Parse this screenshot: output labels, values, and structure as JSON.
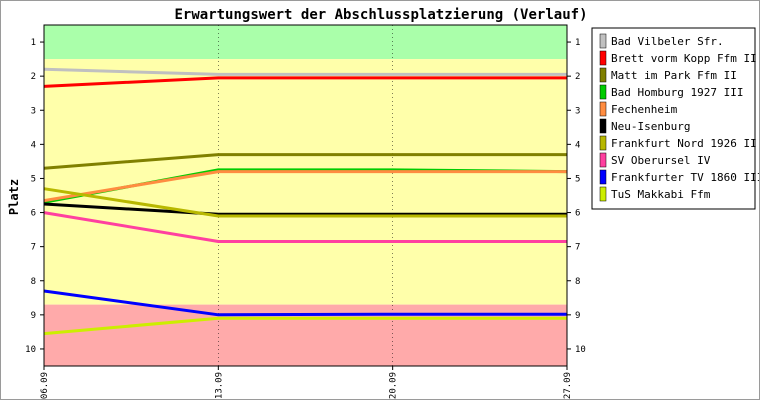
{
  "chart_data": {
    "type": "line",
    "title": "Erwartungswert der Abschlussplatzierung (Verlauf)",
    "ylabel": "Platz",
    "xlabel": "",
    "x": [
      "06.09",
      "13.09",
      "20.09",
      "27.09"
    ],
    "ylim": [
      10.5,
      0.5
    ],
    "y_ticks": [
      1,
      2,
      3,
      4,
      5,
      6,
      7,
      8,
      9,
      10
    ],
    "y_inverted": true,
    "legend_position": "right",
    "bands": [
      {
        "from": 0.5,
        "to": 1.5,
        "color": "#aaffaa"
      },
      {
        "from": 1.5,
        "to": 8.7,
        "color": "#ffffaa"
      },
      {
        "from": 8.7,
        "to": 10.5,
        "color": "#ffaaaa"
      }
    ],
    "series": [
      {
        "name": "Bad Vilbeler Sfr.",
        "color": "#c0c0c0",
        "values": [
          1.8,
          1.95,
          1.95,
          1.95
        ]
      },
      {
        "name": "Brett vorm Kopp Ffm II",
        "color": "#ff0000",
        "values": [
          2.3,
          2.05,
          2.05,
          2.05
        ]
      },
      {
        "name": "Matt im Park Ffm II",
        "color": "#808000",
        "values": [
          4.7,
          4.3,
          4.3,
          4.3
        ]
      },
      {
        "name": "Bad Homburg 1927 III",
        "color": "#00cc00",
        "values": [
          5.7,
          4.75,
          4.75,
          4.8
        ]
      },
      {
        "name": "Fechenheim",
        "color": "#ff8c40",
        "values": [
          5.65,
          4.8,
          4.8,
          4.8
        ]
      },
      {
        "name": "Neu-Isenburg",
        "color": "#000000",
        "values": [
          5.75,
          6.05,
          6.05,
          6.05
        ]
      },
      {
        "name": "Frankfurt Nord 1926 II",
        "color": "#b8b800",
        "values": [
          5.3,
          6.1,
          6.1,
          6.1
        ]
      },
      {
        "name": "SV Oberursel IV",
        "color": "#ff40a0",
        "values": [
          6.0,
          6.85,
          6.85,
          6.85
        ]
      },
      {
        "name": "Frankfurter TV 1860 III",
        "color": "#0000ff",
        "values": [
          8.3,
          9.0,
          8.98,
          8.98
        ]
      },
      {
        "name": "TuS Makkabi Ffm",
        "color": "#ccee00",
        "values": [
          9.55,
          9.1,
          9.1,
          9.1
        ]
      }
    ]
  }
}
